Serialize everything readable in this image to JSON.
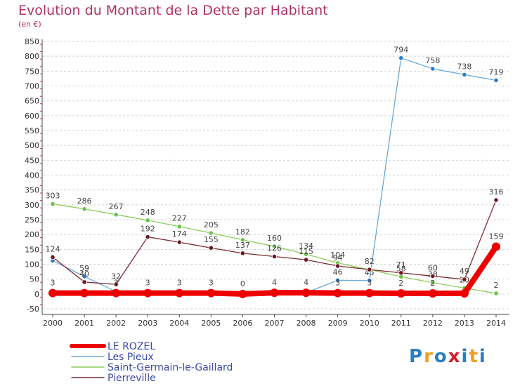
{
  "header": {
    "title": "Evolution du Montant de la Dette par Habitant",
    "subtitle": "(en €)"
  },
  "brand": {
    "text": "Proxiti",
    "letters": [
      "P",
      "r",
      "o",
      "x",
      "i",
      "t",
      "i"
    ],
    "letter_colors": [
      "#2b7ec2",
      "#f0a020",
      "#2b7ec2",
      "#d0202a",
      "#2b7ec2",
      "#f0a020",
      "#2b7ec2"
    ]
  },
  "chart_data": {
    "type": "line",
    "title": "Evolution du Montant de la Dette par Habitant",
    "subtitle": "(en €)",
    "x": [
      "2000",
      "2001",
      "2002",
      "2003",
      "2004",
      "2005",
      "2006",
      "2007",
      "2008",
      "2009",
      "2010",
      "2011",
      "2012",
      "2013",
      "2014"
    ],
    "y_ticks": [
      -50,
      0,
      50,
      100,
      150,
      200,
      250,
      300,
      350,
      400,
      450,
      500,
      550,
      600,
      650,
      700,
      750,
      800,
      850
    ],
    "ylim": [
      -50,
      850
    ],
    "grid": "horizontal dashed",
    "legend_position": "bottom-left",
    "series": [
      {
        "name": "Les Pieux",
        "color": "#6aa8d8",
        "marker_color": "#2b7ec2",
        "values": [
          112,
          59,
          8,
          8,
          3,
          3,
          0,
          4,
          4,
          46,
          45,
          794,
          758,
          738,
          719
        ],
        "labels": [
          "",
          "59",
          "",
          "",
          "",
          "",
          "",
          "",
          "",
          "46",
          "45",
          "794",
          "758",
          "738",
          "719"
        ]
      },
      {
        "name": "Saint-Germain-le-Gaillard",
        "color": "#8ccc5a",
        "marker_color": "#6cc04a",
        "values": [
          303,
          286,
          267,
          248,
          227,
          205,
          182,
          160,
          134,
          104,
          82,
          58,
          38,
          20,
          2
        ],
        "labels": [
          "303",
          "286",
          "267",
          "248",
          "227",
          "205",
          "182",
          "160",
          "134",
          "104",
          "82",
          "58",
          "38",
          "20",
          "2"
        ]
      },
      {
        "name": "Pierreville",
        "color": "#7a2a30",
        "marker_color": "#6a1a20",
        "values": [
          124,
          40,
          32,
          192,
          174,
          155,
          137,
          126,
          115,
          94,
          82,
          71,
          60,
          49,
          316
        ],
        "labels": [
          "124",
          "40",
          "32",
          "192",
          "174",
          "155",
          "137",
          "126",
          "115",
          "94",
          "",
          "71",
          "60",
          "49",
          "316"
        ]
      },
      {
        "name": "LE ROZEL",
        "color": "#ee0000",
        "marker_color": "#ee0000",
        "values": [
          3,
          3,
          3,
          3,
          3,
          3,
          0,
          4,
          4,
          3,
          3,
          2,
          2,
          2,
          159
        ],
        "labels": [
          "3",
          "",
          "3",
          "3",
          "3",
          "3",
          "0",
          "4",
          "4",
          "3",
          "3",
          "2",
          "2",
          "",
          "159"
        ]
      }
    ],
    "legend": [
      "LE ROZEL",
      "Les Pieux",
      "Saint-Germain-le-Gaillard",
      "Pierreville"
    ]
  }
}
